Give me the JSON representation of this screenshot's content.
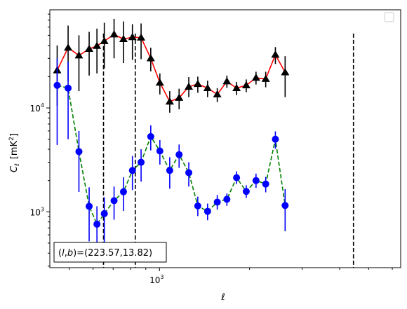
{
  "chart_data": {
    "type": "scatter",
    "xscale": "log",
    "yscale": "log",
    "xlabel": "ℓ",
    "ylabel": "C",
    "ylabel_sub": "ℓ",
    "ylabel_unit": "[mK",
    "ylabel_unit_sup": "2",
    "ylabel_unit_end": "]",
    "xlim": [
      430,
      6400
    ],
    "ylim": [
      290,
      88000
    ],
    "x_ticks_major": [
      {
        "value": 1000,
        "base": "10",
        "exp": "3"
      }
    ],
    "y_ticks_major": [
      {
        "value": 1000,
        "base": "10",
        "exp": "3"
      },
      {
        "value": 10000,
        "base": "10",
        "exp": "4"
      }
    ],
    "grid": false,
    "legend": "empty box, top-right",
    "annotation": {
      "prefix": "(",
      "var1": "l",
      "comma": ",",
      "var2": "b",
      "suffix": ")=(223.57,13.82)",
      "placement": "bottom-left"
    },
    "vlines": [
      650,
      830,
      4450
    ],
    "series": [
      {
        "marker": "triangle",
        "marker_color": "#000000",
        "line_color": "#ff0000",
        "line_style": "solid",
        "points": [
          {
            "x": 455,
            "y": 23000,
            "lo": 10500,
            "hi": 40000
          },
          {
            "x": 495,
            "y": 38000,
            "lo": 18000,
            "hi": 62000
          },
          {
            "x": 538,
            "y": 32000,
            "lo": 14500,
            "hi": 50000
          },
          {
            "x": 582,
            "y": 37000,
            "lo": 20500,
            "hi": 54000
          },
          {
            "x": 618,
            "y": 39500,
            "lo": 21500,
            "hi": 58000
          },
          {
            "x": 654,
            "y": 44000,
            "lo": 24000,
            "hi": 66000
          },
          {
            "x": 705,
            "y": 51000,
            "lo": 30000,
            "hi": 72000
          },
          {
            "x": 758,
            "y": 46000,
            "lo": 27000,
            "hi": 68000
          },
          {
            "x": 812,
            "y": 48000,
            "lo": 29000,
            "hi": 64000
          },
          {
            "x": 868,
            "y": 47500,
            "lo": 29500,
            "hi": 65000
          },
          {
            "x": 935,
            "y": 30000,
            "lo": 22500,
            "hi": 38000
          },
          {
            "x": 1003,
            "y": 17500,
            "lo": 13500,
            "hi": 21500
          },
          {
            "x": 1082,
            "y": 11500,
            "lo": 9000,
            "hi": 14500
          },
          {
            "x": 1163,
            "y": 12500,
            "lo": 9700,
            "hi": 15300
          },
          {
            "x": 1253,
            "y": 16000,
            "lo": 12700,
            "hi": 19800
          },
          {
            "x": 1343,
            "y": 17000,
            "lo": 14000,
            "hi": 20000
          },
          {
            "x": 1448,
            "y": 15500,
            "lo": 12700,
            "hi": 18300
          },
          {
            "x": 1560,
            "y": 13500,
            "lo": 11400,
            "hi": 15500
          },
          {
            "x": 1680,
            "y": 18000,
            "lo": 15600,
            "hi": 20500
          },
          {
            "x": 1810,
            "y": 15500,
            "lo": 13300,
            "hi": 17800
          },
          {
            "x": 1950,
            "y": 16500,
            "lo": 14200,
            "hi": 18800
          },
          {
            "x": 2102,
            "y": 19500,
            "lo": 16800,
            "hi": 22300
          },
          {
            "x": 2265,
            "y": 19000,
            "lo": 15800,
            "hi": 22300
          },
          {
            "x": 2440,
            "y": 32500,
            "lo": 26500,
            "hi": 38500
          },
          {
            "x": 2630,
            "y": 22000,
            "lo": 12700,
            "hi": 31500
          }
        ]
      },
      {
        "marker": "circle",
        "marker_color": "#0000ff",
        "line_color": "#008000",
        "line_style": "dashed",
        "points": [
          {
            "x": 455,
            "y": 16500,
            "lo": 4400,
            "hi": 30000
          },
          {
            "x": 495,
            "y": 15500,
            "lo": 5000,
            "hi": 28000
          },
          {
            "x": 538,
            "y": 3800,
            "lo": 1550,
            "hi": 6000
          },
          {
            "x": 582,
            "y": 1130,
            "lo": 520,
            "hi": 1720
          },
          {
            "x": 618,
            "y": 760,
            "lo": 330,
            "hi": 1130
          },
          {
            "x": 654,
            "y": 960,
            "lo": 380,
            "hi": 1380
          },
          {
            "x": 705,
            "y": 1280,
            "lo": 840,
            "hi": 1750
          },
          {
            "x": 758,
            "y": 1560,
            "lo": 1020,
            "hi": 2150
          },
          {
            "x": 812,
            "y": 2500,
            "lo": 1620,
            "hi": 3450
          },
          {
            "x": 868,
            "y": 3000,
            "lo": 1950,
            "hi": 4000
          },
          {
            "x": 935,
            "y": 5300,
            "lo": 3900,
            "hi": 6800
          },
          {
            "x": 1003,
            "y": 3850,
            "lo": 2850,
            "hi": 4900
          },
          {
            "x": 1082,
            "y": 2500,
            "lo": 1670,
            "hi": 3350
          },
          {
            "x": 1163,
            "y": 3550,
            "lo": 2650,
            "hi": 4450
          },
          {
            "x": 1253,
            "y": 2380,
            "lo": 1750,
            "hi": 3000
          },
          {
            "x": 1343,
            "y": 1140,
            "lo": 910,
            "hi": 1400
          },
          {
            "x": 1448,
            "y": 1010,
            "lo": 830,
            "hi": 1200
          },
          {
            "x": 1560,
            "y": 1240,
            "lo": 1050,
            "hi": 1450
          },
          {
            "x": 1680,
            "y": 1320,
            "lo": 1140,
            "hi": 1500
          },
          {
            "x": 1810,
            "y": 2130,
            "lo": 1850,
            "hi": 2450
          },
          {
            "x": 1950,
            "y": 1570,
            "lo": 1360,
            "hi": 1800
          },
          {
            "x": 2102,
            "y": 2000,
            "lo": 1700,
            "hi": 2330
          },
          {
            "x": 2265,
            "y": 1850,
            "lo": 1540,
            "hi": 2170
          },
          {
            "x": 2440,
            "y": 5000,
            "lo": 4050,
            "hi": 5950
          },
          {
            "x": 2630,
            "y": 1150,
            "lo": 650,
            "hi": 1650
          }
        ]
      }
    ]
  }
}
